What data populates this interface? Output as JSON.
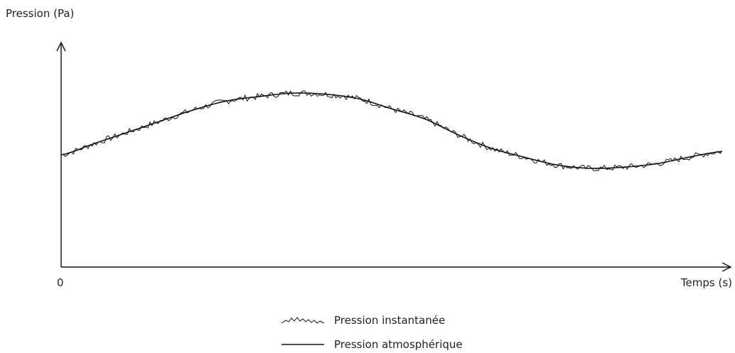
{
  "chart_data": {
    "type": "line",
    "xlabel": "Temps (s)",
    "ylabel": "Pression (Pa)",
    "origin_label": "0",
    "xlim": [
      0,
      10
    ],
    "ylim": [
      0,
      10
    ],
    "grid": false,
    "legend_position": "bottom-center",
    "series": [
      {
        "name": "Pression instantanée",
        "style": "noisy",
        "x": [
          0,
          0.5,
          1,
          1.5,
          2,
          2.5,
          3,
          3.5,
          4,
          4.5,
          5,
          5.5,
          6,
          6.5,
          7,
          7.5,
          8,
          8.5,
          9,
          9.5,
          10
        ],
        "y": [
          5.0,
          5.5,
          6.0,
          6.5,
          7.0,
          7.4,
          7.6,
          7.75,
          7.7,
          7.5,
          7.05,
          6.6,
          5.9,
          5.3,
          4.9,
          4.55,
          4.4,
          4.45,
          4.6,
          4.9,
          5.15
        ]
      },
      {
        "name": "Pression atmosphérique",
        "style": "smooth",
        "x": [
          0,
          0.5,
          1,
          1.5,
          2,
          2.5,
          3,
          3.5,
          4,
          4.5,
          5,
          5.5,
          6,
          6.5,
          7,
          7.5,
          8,
          8.5,
          9,
          9.5,
          10
        ],
        "y": [
          5.0,
          5.5,
          6.0,
          6.5,
          7.0,
          7.4,
          7.6,
          7.75,
          7.7,
          7.5,
          7.05,
          6.6,
          5.9,
          5.3,
          4.9,
          4.55,
          4.4,
          4.45,
          4.6,
          4.9,
          5.15
        ]
      }
    ]
  }
}
